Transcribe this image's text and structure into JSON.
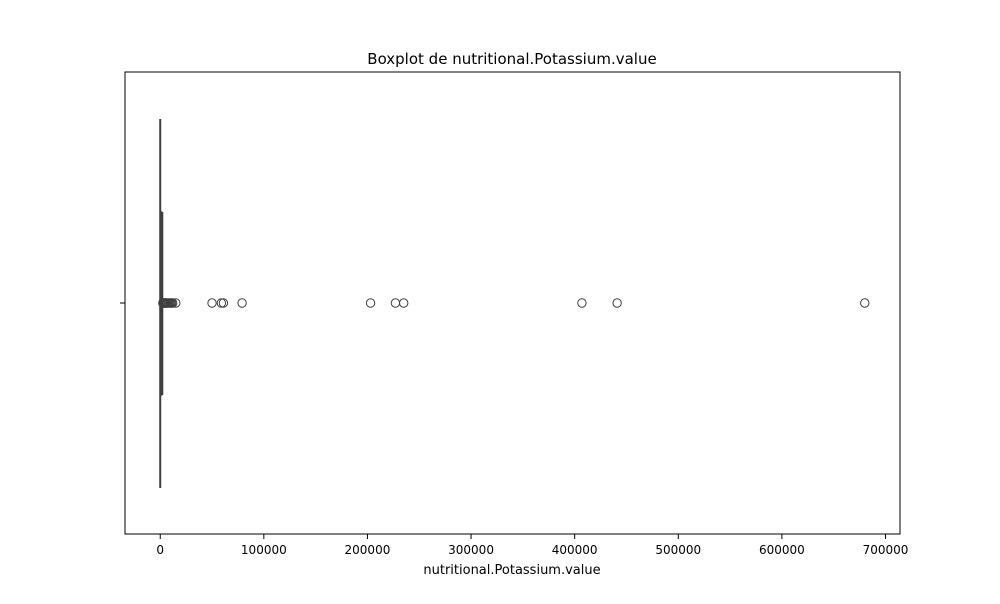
{
  "chart_data": {
    "type": "boxplot",
    "title": "Boxplot de nutritional.Potassium.value",
    "xlabel": "nutritional.Potassium.value",
    "ylabel": "",
    "orientation": "horizontal",
    "xlim": [
      -34000,
      714000
    ],
    "xticks": [
      {
        "value": 0,
        "label": "0"
      },
      {
        "value": 100000,
        "label": "100000"
      },
      {
        "value": 200000,
        "label": "200000"
      },
      {
        "value": 300000,
        "label": "300000"
      },
      {
        "value": 400000,
        "label": "400000"
      },
      {
        "value": 500000,
        "label": "500000"
      },
      {
        "value": 600000,
        "label": "600000"
      },
      {
        "value": 700000,
        "label": "700000"
      }
    ],
    "grid": false,
    "box": {
      "whisker_low": 0,
      "q1": 150,
      "median": 400,
      "q3": 900,
      "whisker_high": 2000
    },
    "outliers": [
      2500,
      3000,
      3500,
      4000,
      4500,
      5000,
      5500,
      6000,
      7000,
      8000,
      9000,
      10000,
      11000,
      12000,
      15000,
      50000,
      59000,
      61000,
      79000,
      203000,
      227000,
      235000,
      407000,
      441000,
      680000
    ],
    "colors": {
      "box_edge": "#3f3f3f",
      "outlier_edge": "#3f3f3f",
      "axes": "#000000",
      "background": "#ffffff"
    }
  }
}
